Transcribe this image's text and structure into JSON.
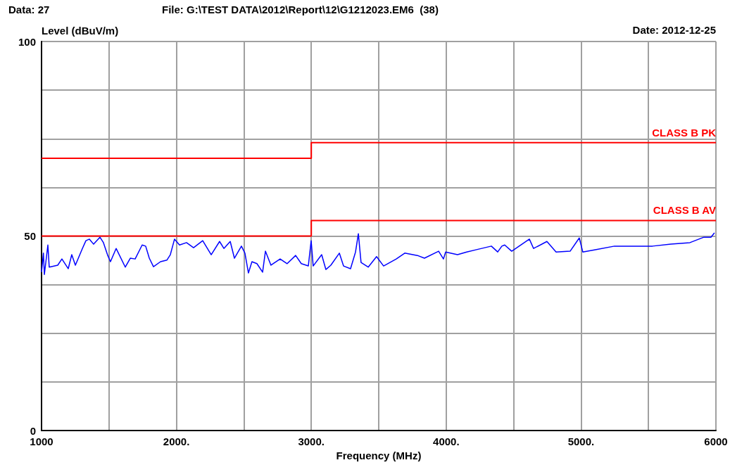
{
  "chart_data": {
    "type": "line",
    "xlabel": "Frequency (MHz)",
    "ylabel": "Level (dBuV/m)",
    "annotations": [
      "Data: 27",
      "File: G:\\TEST DATA\\2012\\Report\\12\\G1212023.EM6  (38)",
      "Date: 2012-12-25"
    ],
    "xlim": [
      1000,
      6000
    ],
    "ylim": [
      0,
      100
    ],
    "xticks": [
      {
        "value": 1000,
        "label": "1000"
      },
      {
        "value": 1500,
        "label": null
      },
      {
        "value": 2000,
        "label": "2000."
      },
      {
        "value": 2500,
        "label": null
      },
      {
        "value": 3000,
        "label": "3000."
      },
      {
        "value": 3500,
        "label": null
      },
      {
        "value": 4000,
        "label": "4000."
      },
      {
        "value": 4500,
        "label": null
      },
      {
        "value": 5000,
        "label": "5000."
      },
      {
        "value": 5500,
        "label": null
      },
      {
        "value": 6000,
        "label": "6000"
      }
    ],
    "yticks": [
      0,
      {
        "value": 12.5,
        "label": null
      },
      {
        "value": 25,
        "label": null
      },
      {
        "value": 37.5,
        "label": null
      },
      50,
      {
        "value": 62.5,
        "label": null
      },
      {
        "value": 75,
        "label": null
      },
      {
        "value": 87.5,
        "label": null
      },
      100
    ],
    "grid": true,
    "legend": false,
    "marker": "none",
    "line_style": "solid",
    "series": [
      {
        "color": "#0000ff",
        "x": [
          1000,
          1014,
          1021,
          1047,
          1057,
          1120,
          1151,
          1198,
          1224,
          1251,
          1303,
          1329,
          1355,
          1386,
          1433,
          1459,
          1491,
          1511,
          1553,
          1621,
          1658,
          1694,
          1746,
          1772,
          1799,
          1830,
          1882,
          1929,
          1955,
          1986,
          2023,
          2075,
          2127,
          2195,
          2258,
          2320,
          2352,
          2399,
          2430,
          2482,
          2508,
          2534,
          2560,
          2597,
          2639,
          2660,
          2701,
          2769,
          2821,
          2884,
          2926,
          2978,
          2999,
          3014,
          3077,
          3108,
          3145,
          3208,
          3239,
          3291,
          3328,
          3349,
          3369,
          3422,
          3484,
          3536,
          3630,
          3693,
          3787,
          3839,
          3944,
          3980,
          3996,
          4084,
          4152,
          4225,
          4335,
          4382,
          4413,
          4434,
          4486,
          4617,
          4648,
          4747,
          4815,
          4919,
          4987,
          5013,
          5113,
          5248,
          5389,
          5530,
          5666,
          5807,
          5911,
          5963,
          5989
        ],
        "values": [
          40.7,
          45.6,
          40.1,
          47.7,
          42.0,
          42.5,
          44.1,
          41.6,
          45.2,
          42.5,
          46.8,
          48.8,
          49.2,
          47.9,
          49.7,
          48.3,
          45.0,
          43.4,
          46.8,
          42.0,
          44.3,
          44.1,
          47.7,
          47.4,
          44.3,
          42.1,
          43.4,
          43.8,
          45.2,
          49.2,
          47.7,
          48.3,
          47.0,
          48.8,
          45.2,
          48.6,
          46.8,
          48.6,
          44.3,
          47.4,
          45.6,
          40.5,
          43.4,
          42.9,
          40.7,
          46.1,
          42.5,
          44.1,
          42.9,
          45.0,
          42.9,
          42.3,
          48.8,
          42.3,
          45.2,
          41.4,
          42.5,
          45.6,
          42.3,
          41.6,
          45.9,
          50.6,
          43.2,
          42.0,
          44.7,
          42.3,
          44.1,
          45.6,
          45.0,
          44.3,
          46.1,
          44.1,
          45.9,
          45.2,
          45.9,
          46.5,
          47.4,
          45.9,
          47.4,
          47.7,
          46.1,
          49.2,
          46.8,
          48.6,
          45.9,
          46.1,
          49.5,
          45.9,
          46.5,
          47.4,
          47.4,
          47.4,
          47.9,
          48.3,
          49.7,
          49.7,
          50.8
        ]
      },
      {
        "name": "CLASS B PK",
        "color": "#ff0000",
        "x": [
          1000,
          3000,
          3000,
          6000
        ],
        "values": [
          70,
          70,
          74,
          74
        ]
      },
      {
        "name": "CLASS B AV",
        "color": "#ff0000",
        "x": [
          1000,
          3000,
          3000,
          6000
        ],
        "values": [
          50,
          50,
          54,
          54
        ]
      }
    ]
  }
}
